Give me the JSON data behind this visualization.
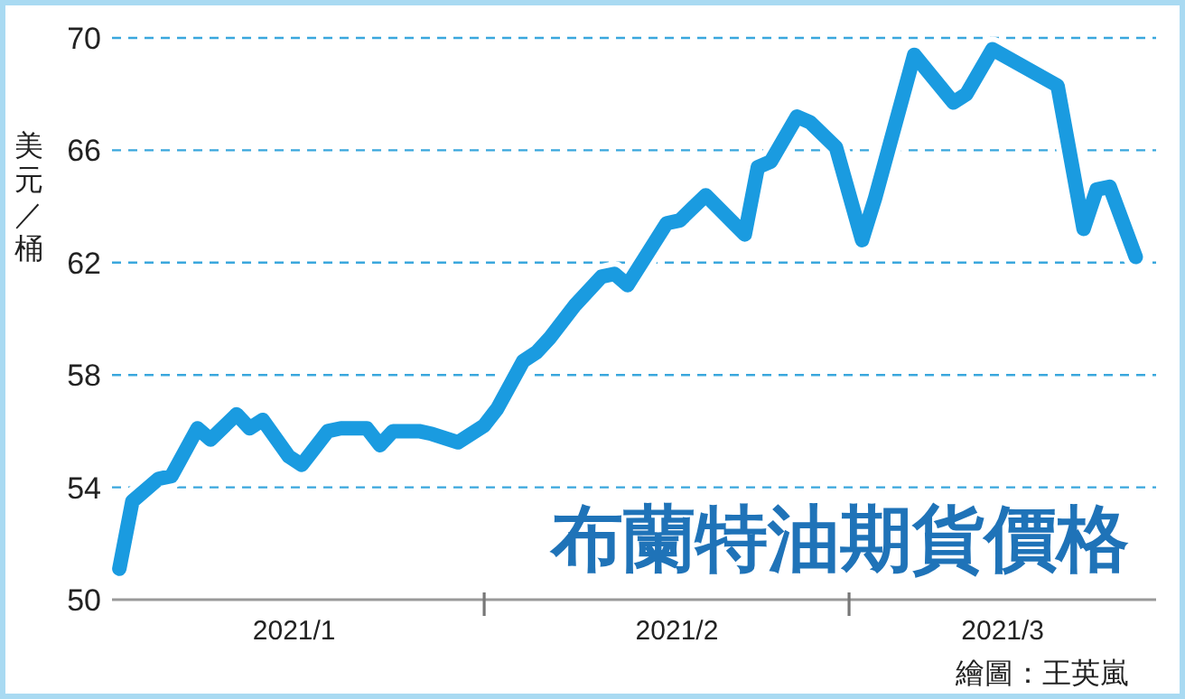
{
  "chart_data": {
    "type": "line",
    "title": "布蘭特油期貨價格",
    "ylabel": "美元／桶",
    "annotations": [
      "繪圖：王英嵐"
    ],
    "x": [
      "2021-01-04",
      "2021-01-05",
      "2021-01-07",
      "2021-01-08",
      "2021-01-10",
      "2021-01-11",
      "2021-01-13",
      "2021-01-14",
      "2021-01-15",
      "2021-01-17",
      "2021-01-18",
      "2021-01-20",
      "2021-01-21",
      "2021-01-23",
      "2021-01-24",
      "2021-01-25",
      "2021-01-27",
      "2021-01-28",
      "2021-01-30",
      "2021-02-01",
      "2021-02-02",
      "2021-02-04",
      "2021-02-05",
      "2021-02-06",
      "2021-02-08",
      "2021-02-10",
      "2021-02-11",
      "2021-02-12",
      "2021-02-15",
      "2021-02-16",
      "2021-02-18",
      "2021-02-21",
      "2021-02-22",
      "2021-02-23",
      "2021-02-25",
      "2021-02-26",
      "2021-02-28",
      "2021-03-02",
      "2021-03-03",
      "2021-03-06",
      "2021-03-09",
      "2021-03-10",
      "2021-03-12",
      "2021-03-17",
      "2021-03-19",
      "2021-03-20",
      "2021-03-21",
      "2021-03-23"
    ],
    "series": [
      {
        "color": "#1a9be0",
        "values": [
          51.1,
          53.5,
          54.3,
          54.4,
          56.1,
          55.7,
          56.6,
          56.1,
          56.4,
          55.1,
          54.8,
          56.0,
          56.1,
          56.1,
          55.5,
          56.0,
          56.0,
          55.9,
          55.6,
          56.2,
          56.8,
          58.5,
          58.8,
          59.3,
          60.5,
          61.5,
          61.6,
          61.2,
          63.4,
          63.5,
          64.4,
          63.0,
          65.4,
          65.6,
          67.2,
          67.0,
          66.1,
          62.8,
          64.3,
          69.4,
          67.7,
          68.0,
          69.6,
          68.3,
          63.2,
          64.6,
          64.7,
          62.2
        ]
      }
    ],
    "xlim": [
      "2021-01-03T10:30",
      "2021-03-24T13:30"
    ],
    "xticks": [
      {
        "value": "2021-01-17T10:00",
        "label": "2021/1"
      },
      {
        "value": "2021-02-01",
        "label": null
      },
      {
        "value": "2021-02-15T19:00",
        "label": "2021/2"
      },
      {
        "value": "2021-03-01",
        "label": null
      },
      {
        "value": "2021-03-12T19:00",
        "label": "2021/3"
      }
    ],
    "ylim": [
      50,
      70
    ],
    "yticks": [
      50,
      54,
      58,
      62,
      66,
      70
    ],
    "grid": "y",
    "marker": "none",
    "line_style": "solid"
  }
}
